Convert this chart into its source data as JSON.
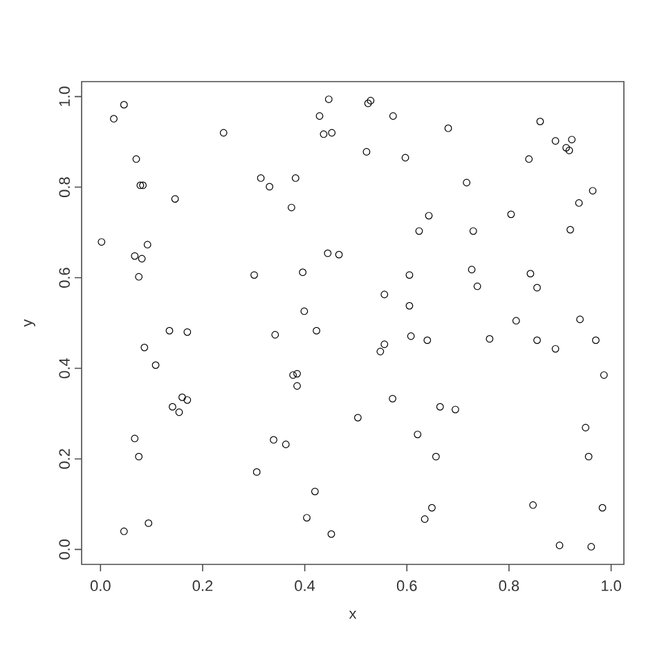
{
  "chart_data": {
    "type": "scatter",
    "xlabel": "x",
    "ylabel": "y",
    "marker": "circle",
    "color": "#000000",
    "xlim": [
      -0.037,
      1.025
    ],
    "ylim": [
      -0.033,
      1.033
    ],
    "xticks": [
      {
        "value": 0,
        "label": "0.0"
      },
      {
        "value": 0.2,
        "label": "0.2"
      },
      {
        "value": 0.4,
        "label": "0.4"
      },
      {
        "value": 0.6,
        "label": "0.6"
      },
      {
        "value": 0.8,
        "label": "0.8"
      },
      {
        "value": 1,
        "label": "1.0"
      }
    ],
    "yticks": [
      {
        "value": 0,
        "label": "0.0"
      },
      {
        "value": 0.2,
        "label": "0.2"
      },
      {
        "value": 0.4,
        "label": "0.4"
      },
      {
        "value": 0.6,
        "label": "0.6"
      },
      {
        "value": 0.8,
        "label": "0.8"
      },
      {
        "value": 1,
        "label": "1.0"
      }
    ],
    "x": [
      0.046,
      0.026,
      0.447,
      0.429,
      0.437,
      0.453,
      0.241,
      0.07,
      0.314,
      0.382,
      0.331,
      0.078,
      0.083,
      0.146,
      0.374,
      0.002,
      0.092,
      0.067,
      0.081,
      0.445,
      0.467,
      0.075,
      0.301,
      0.396,
      0.399,
      0.529,
      0.524,
      0.573,
      0.681,
      0.861,
      0.891,
      0.912,
      0.918,
      0.923,
      0.521,
      0.597,
      0.839,
      0.717,
      0.964,
      0.937,
      0.643,
      0.804,
      0.624,
      0.73,
      0.92,
      0.727,
      0.605,
      0.842,
      0.738,
      0.855,
      0.556,
      0.605,
      0.814,
      0.939,
      0.135,
      0.17,
      0.342,
      0.423,
      0.086,
      0.108,
      0.377,
      0.385,
      0.385,
      0.16,
      0.17,
      0.141,
      0.154,
      0.067,
      0.339,
      0.363,
      0.075,
      0.306,
      0.42,
      0.404,
      0.046,
      0.094,
      0.452,
      0.608,
      0.64,
      0.762,
      0.855,
      0.891,
      0.97,
      0.556,
      0.548,
      0.986,
      0.572,
      0.665,
      0.695,
      0.504,
      0.621,
      0.95,
      0.657,
      0.956,
      0.649,
      0.635,
      0.847,
      0.983,
      0.899,
      0.961
    ],
    "values": [
      0.982,
      0.951,
      0.994,
      0.957,
      0.917,
      0.92,
      0.92,
      0.862,
      0.82,
      0.82,
      0.801,
      0.804,
      0.804,
      0.774,
      0.755,
      0.679,
      0.673,
      0.648,
      0.642,
      0.654,
      0.651,
      0.602,
      0.606,
      0.612,
      0.526,
      0.991,
      0.985,
      0.957,
      0.93,
      0.945,
      0.902,
      0.887,
      0.881,
      0.905,
      0.878,
      0.865,
      0.862,
      0.81,
      0.792,
      0.765,
      0.737,
      0.74,
      0.703,
      0.703,
      0.706,
      0.618,
      0.606,
      0.609,
      0.581,
      0.578,
      0.563,
      0.538,
      0.505,
      0.508,
      0.483,
      0.48,
      0.474,
      0.483,
      0.446,
      0.407,
      0.385,
      0.388,
      0.361,
      0.336,
      0.33,
      0.315,
      0.303,
      0.245,
      0.242,
      0.232,
      0.205,
      0.171,
      0.128,
      0.07,
      0.04,
      0.058,
      0.034,
      0.471,
      0.462,
      0.465,
      0.462,
      0.443,
      0.462,
      0.453,
      0.437,
      0.385,
      0.333,
      0.315,
      0.309,
      0.291,
      0.254,
      0.269,
      0.205,
      0.205,
      0.092,
      0.067,
      0.098,
      0.092,
      0.009,
      0.006
    ]
  }
}
